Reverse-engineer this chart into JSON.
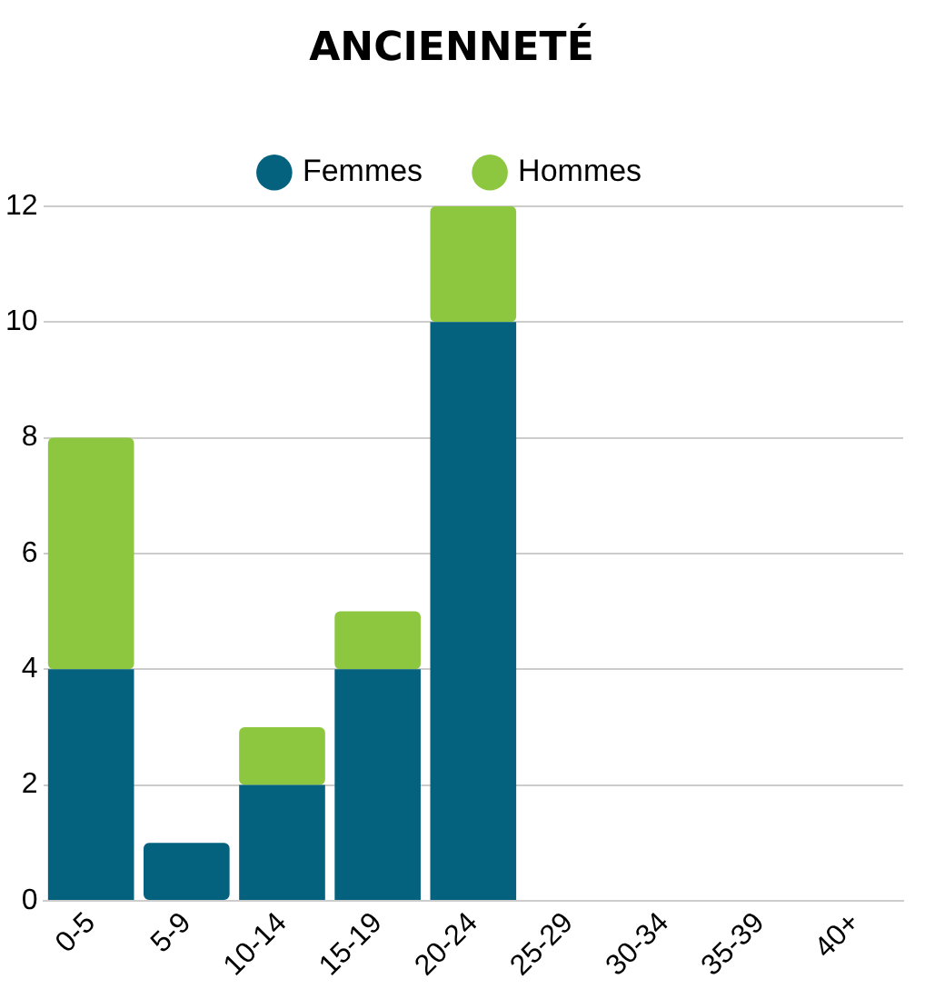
{
  "chart_data": {
    "type": "bar",
    "title": "ANCIENNETÉ",
    "stacked": true,
    "legend": "top",
    "grid": "y",
    "categories": [
      "0-5",
      "5-9",
      "10-14",
      "15-19",
      "20-24",
      "25-29",
      "30-34",
      "35-39",
      "40+"
    ],
    "series": [
      {
        "name": "Femmes",
        "color": "#05627f",
        "values": [
          4,
          1,
          2,
          4,
          10,
          0,
          0,
          0,
          0
        ]
      },
      {
        "name": "Hommes",
        "color": "#8dc63f",
        "values": [
          4,
          0,
          1,
          1,
          2,
          0,
          0,
          0,
          0
        ]
      }
    ],
    "ylim": [
      0,
      12
    ],
    "yticks": [
      0,
      2,
      4,
      6,
      8,
      10,
      12
    ]
  }
}
